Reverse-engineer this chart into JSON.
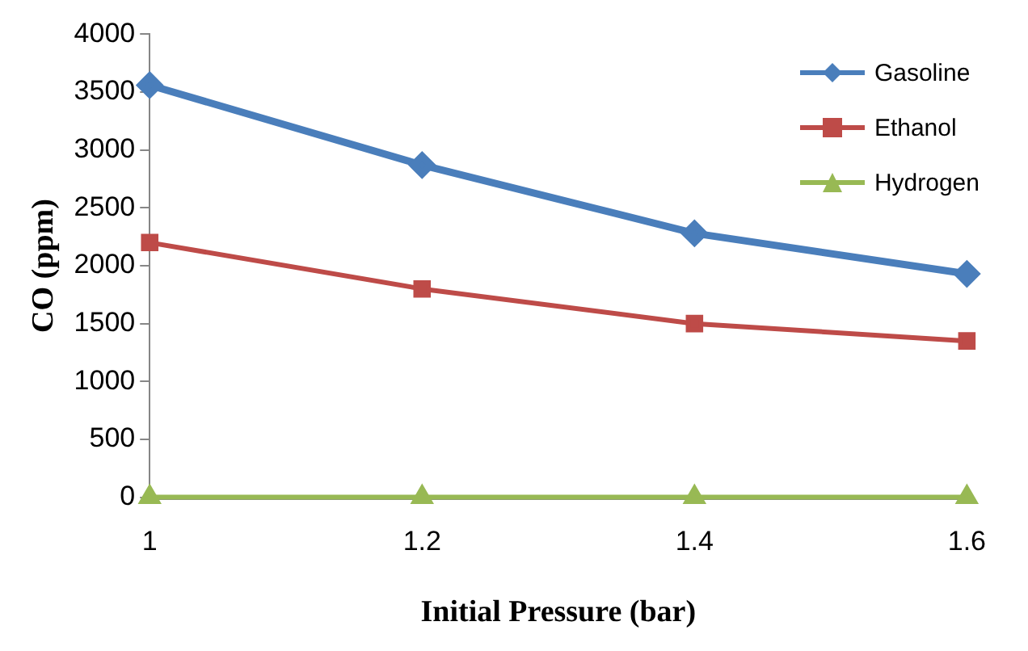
{
  "chart_data": {
    "type": "line",
    "xlabel": "Initial Pressure (bar)",
    "ylabel": "CO (ppm)",
    "x": [
      1,
      1.2,
      1.4,
      1.6
    ],
    "xlim": [
      1,
      1.6
    ],
    "xticks": [
      1,
      1.2,
      1.4,
      1.6
    ],
    "ylim": [
      0,
      4000
    ],
    "yticks": [
      0,
      500,
      1000,
      1500,
      2000,
      2500,
      3000,
      3500,
      4000
    ],
    "grid": false,
    "legend": "top right",
    "series": [
      {
        "name": "Gasoline",
        "color": "#4a7ebb",
        "marker": "diamond",
        "values": [
          3560,
          2870,
          2280,
          1930
        ]
      },
      {
        "name": "Ethanol",
        "color": "#be4b48",
        "marker": "square",
        "values": [
          2200,
          1800,
          1500,
          1350
        ]
      },
      {
        "name": "Hydrogen",
        "color": "#98b954",
        "marker": "triangle",
        "values": [
          0,
          0,
          0,
          0
        ]
      }
    ]
  }
}
